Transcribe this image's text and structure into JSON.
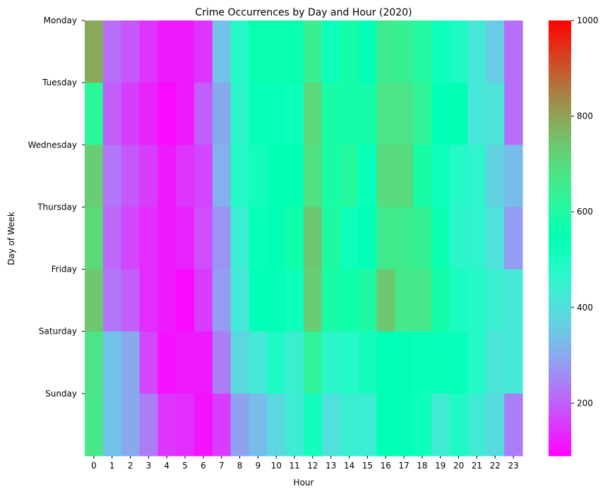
{
  "chart_data": {
    "type": "heatmap",
    "title": "Crime Occurrences by Day and Hour (2020)",
    "xlabel": "Hour",
    "ylabel": "Day of Week",
    "x_categories": [
      "0",
      "1",
      "2",
      "3",
      "4",
      "5",
      "6",
      "7",
      "8",
      "9",
      "10",
      "11",
      "12",
      "13",
      "14",
      "15",
      "16",
      "17",
      "18",
      "19",
      "20",
      "21",
      "22",
      "23"
    ],
    "y_categories": [
      "Monday",
      "Tuesday",
      "Wednesday",
      "Thursday",
      "Friday",
      "Saturday",
      "Sunday"
    ],
    "values": [
      [
        790,
        220,
        190,
        150,
        120,
        120,
        150,
        340,
        480,
        560,
        560,
        560,
        650,
        520,
        580,
        540,
        660,
        640,
        610,
        520,
        490,
        420,
        360,
        220
      ],
      [
        620,
        200,
        160,
        130,
        100,
        120,
        200,
        300,
        470,
        530,
        530,
        520,
        710,
        590,
        580,
        580,
        680,
        680,
        630,
        540,
        550,
        420,
        410,
        220
      ],
      [
        730,
        230,
        190,
        160,
        120,
        150,
        170,
        310,
        480,
        510,
        550,
        550,
        690,
        590,
        610,
        530,
        700,
        700,
        590,
        520,
        480,
        460,
        370,
        330
      ],
      [
        710,
        210,
        170,
        140,
        120,
        130,
        180,
        270,
        440,
        530,
        550,
        570,
        740,
        600,
        520,
        540,
        660,
        660,
        640,
        560,
        470,
        460,
        400,
        280
      ],
      [
        740,
        230,
        200,
        140,
        120,
        100,
        160,
        280,
        420,
        540,
        540,
        520,
        730,
        590,
        570,
        600,
        740,
        670,
        670,
        580,
        500,
        480,
        440,
        420
      ],
      [
        680,
        340,
        300,
        170,
        110,
        120,
        120,
        240,
        380,
        420,
        490,
        440,
        630,
        470,
        480,
        510,
        540,
        540,
        530,
        530,
        530,
        480,
        410,
        420
      ],
      [
        670,
        340,
        300,
        240,
        150,
        140,
        110,
        160,
        290,
        330,
        380,
        430,
        510,
        400,
        440,
        440,
        540,
        540,
        520,
        430,
        490,
        430,
        390,
        240
      ]
    ],
    "colorbar": {
      "cmap": "rainbow",
      "vmin": 90,
      "vmax": 1000,
      "ticks": [
        "200",
        "400",
        "600",
        "800",
        "1000"
      ]
    }
  }
}
